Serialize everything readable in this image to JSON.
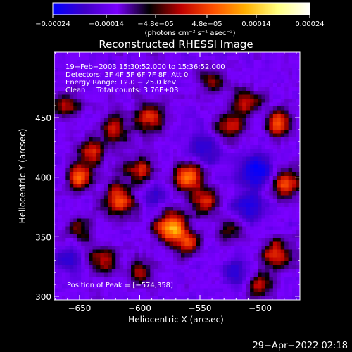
{
  "chart_data": {
    "type": "heatmap",
    "title": "Reconstructed RHESSI Image",
    "xlabel": "Heliocentric X (arcsec)",
    "ylabel": "Heliocentric Y (arcsec)",
    "xlim": [
      -671,
      -467
    ],
    "ylim": [
      297,
      505
    ],
    "x_ticks": [
      -650,
      -600,
      -550,
      -500
    ],
    "x_tick_labels": [
      "−650",
      "−600",
      "−550",
      "−500"
    ],
    "y_ticks": [
      300,
      350,
      400,
      450
    ],
    "y_tick_labels": [
      "300",
      "350",
      "400",
      "450"
    ],
    "grid": false,
    "colorbar": {
      "range": [
        -0.00024,
        0.00024
      ],
      "ticks": [
        -0.00024,
        -0.00014,
        -4.8e-05,
        4.8e-05,
        0.00014,
        0.00024
      ],
      "tick_labels": [
        "−0.00024",
        "−0.00014",
        "−4.8e−05",
        "4.8e−05",
        "0.00014",
        "0.00024"
      ],
      "units_label": "(photons cm⁻² s⁻¹ asec⁻²)",
      "colors": [
        "#0000ff",
        "#4000c8",
        "#7a00ff",
        "#000000",
        "#c00000",
        "#ff5000",
        "#ffb000",
        "#ffff80",
        "#ffffff"
      ]
    },
    "info_lines": [
      "19−Feb−2003 15:30:52.000 to 15:36:52.000",
      "Detectors: 3F 4F 5F 6F 7F 8F, Att 0",
      "Energy Range: 12.0 − 25.0 keV",
      "Clean     Total counts: 3.76E+03"
    ],
    "peak_label": "Position of Peak = [−574,358]",
    "peak_position": [
      -574,
      358
    ],
    "image_grid": {
      "nx": 64,
      "ny": 64,
      "blobs": [
        {
          "x": -574,
          "y": 358,
          "amp": 1.0,
          "s": 9
        },
        {
          "x": -560,
          "y": 345,
          "amp": 0.6,
          "s": 8
        },
        {
          "x": -617,
          "y": 380,
          "amp": 0.75,
          "s": 10
        },
        {
          "x": -650,
          "y": 400,
          "amp": 0.8,
          "s": 7
        },
        {
          "x": -640,
          "y": 420,
          "amp": 0.6,
          "s": 8
        },
        {
          "x": -620,
          "y": 440,
          "amp": 0.55,
          "s": 10
        },
        {
          "x": -590,
          "y": 450,
          "amp": 0.65,
          "s": 9
        },
        {
          "x": -560,
          "y": 400,
          "amp": 0.8,
          "s": 9
        },
        {
          "x": -545,
          "y": 378,
          "amp": 0.6,
          "s": 8
        },
        {
          "x": -600,
          "y": 405,
          "amp": 0.6,
          "s": 9
        },
        {
          "x": -525,
          "y": 442,
          "amp": 0.6,
          "s": 9
        },
        {
          "x": -510,
          "y": 465,
          "amp": 0.55,
          "s": 8
        },
        {
          "x": -480,
          "y": 395,
          "amp": 0.85,
          "s": 8
        },
        {
          "x": -485,
          "y": 445,
          "amp": 0.7,
          "s": 8
        },
        {
          "x": -487,
          "y": 335,
          "amp": 0.7,
          "s": 9
        },
        {
          "x": -500,
          "y": 310,
          "amp": 0.5,
          "s": 8
        },
        {
          "x": -630,
          "y": 330,
          "amp": 0.55,
          "s": 9
        },
        {
          "x": -660,
          "y": 460,
          "amp": 0.5,
          "s": 8
        },
        {
          "x": -650,
          "y": 355,
          "amp": 0.45,
          "s": 8
        },
        {
          "x": -525,
          "y": 355,
          "amp": 0.45,
          "s": 8
        },
        {
          "x": -600,
          "y": 320,
          "amp": 0.45,
          "s": 8
        },
        {
          "x": -540,
          "y": 480,
          "amp": 0.45,
          "s": 9
        }
      ],
      "negative_blobs": [
        {
          "x": -503,
          "y": 405,
          "amp": 0.7,
          "s": 10
        },
        {
          "x": -510,
          "y": 375,
          "amp": 0.5,
          "s": 9
        },
        {
          "x": -590,
          "y": 385,
          "amp": 0.35,
          "s": 9
        },
        {
          "x": -545,
          "y": 425,
          "amp": 0.45,
          "s": 9
        },
        {
          "x": -660,
          "y": 330,
          "amp": 0.4,
          "s": 8
        },
        {
          "x": -520,
          "y": 320,
          "amp": 0.4,
          "s": 9
        }
      ]
    }
  },
  "footer": {
    "timestamp": "29−Apr−2022 02:18"
  }
}
